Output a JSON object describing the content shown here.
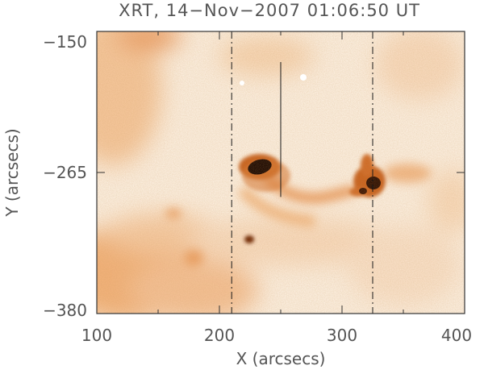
{
  "figure": {
    "title": "XRT, 14−Nov−2007 01:06:50 UT",
    "xlabel": "X (arcsecs)",
    "ylabel": "Y (arcsecs)",
    "colors": {
      "background": "#ffffff",
      "image_light": "#fdf1e3",
      "image_mid": "#f3b680",
      "image_dark": "#b45414",
      "image_core": "#2a0c00",
      "axis": "#333333",
      "text": "#555555"
    }
  },
  "chart_data": {
    "type": "heatmap",
    "title": "XRT, 14−Nov−2007 01:06:50 UT",
    "xlabel": "X (arcsecs)",
    "ylabel": "Y (arcsecs)",
    "xlim": [
      100,
      400
    ],
    "ylim": [
      -380,
      -150
    ],
    "xticks": [
      100,
      200,
      300,
      400
    ],
    "yticks": [
      -380,
      -265,
      -150
    ],
    "x_tick_labels": [
      "100",
      "200",
      "300",
      "400"
    ],
    "y_tick_labels": [
      "−380",
      "−265",
      "−150"
    ],
    "dash_dot_lines_x": [
      210,
      325
    ],
    "solid_line": {
      "x": 250,
      "y_start": -175,
      "y_end": -285
    },
    "bright_regions": [
      {
        "x": 238,
        "y": -260
      },
      {
        "x": 323,
        "y": -270
      },
      {
        "x": 228,
        "y": -318
      }
    ]
  }
}
